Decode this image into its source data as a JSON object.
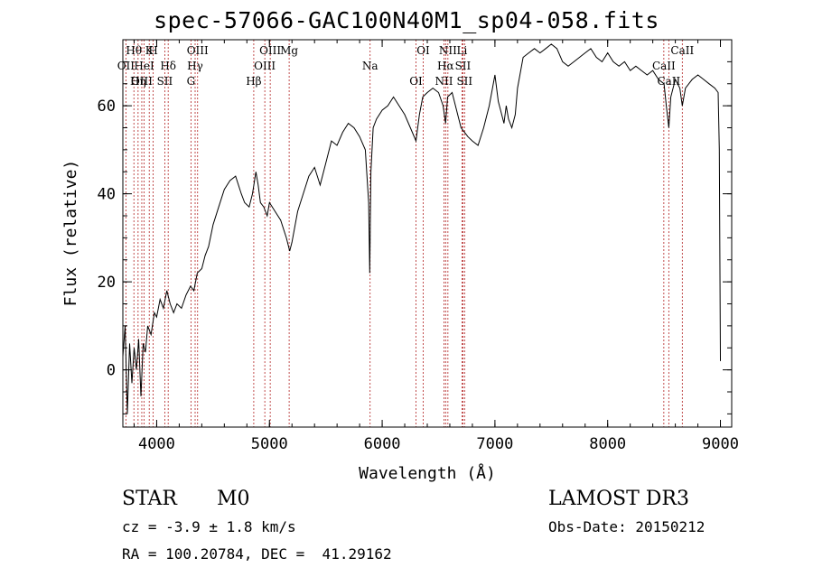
{
  "chart_data": {
    "type": "line",
    "title": "spec-57066-GAC100N40M1_sp04-058.fits",
    "xlabel": "Wavelength (Å)",
    "ylabel": "Flux (relative)",
    "xlim": [
      3700,
      9100
    ],
    "ylim": [
      -13,
      75
    ],
    "xticks": [
      4000,
      5000,
      6000,
      7000,
      8000,
      9000
    ],
    "yticks": [
      0,
      20,
      40,
      60
    ],
    "grid": false,
    "series": [
      {
        "name": "flux",
        "x": [
          3700,
          3720,
          3740,
          3760,
          3780,
          3800,
          3820,
          3840,
          3860,
          3880,
          3900,
          3920,
          3950,
          3980,
          4000,
          4030,
          4060,
          4090,
          4120,
          4150,
          4180,
          4220,
          4260,
          4300,
          4330,
          4360,
          4400,
          4430,
          4460,
          4500,
          4550,
          4600,
          4650,
          4700,
          4750,
          4780,
          4820,
          4850,
          4880,
          4900,
          4920,
          4950,
          4980,
          5000,
          5050,
          5100,
          5150,
          5180,
          5200,
          5250,
          5300,
          5350,
          5400,
          5450,
          5500,
          5550,
          5600,
          5650,
          5700,
          5750,
          5800,
          5850,
          5880,
          5890,
          5900,
          5920,
          5950,
          6000,
          6050,
          6100,
          6150,
          6200,
          6250,
          6300,
          6330,
          6360,
          6400,
          6450,
          6500,
          6540,
          6563,
          6580,
          6620,
          6650,
          6680,
          6700,
          6730,
          6760,
          6800,
          6850,
          6900,
          6950,
          7000,
          7030,
          7060,
          7080,
          7100,
          7120,
          7150,
          7180,
          7200,
          7250,
          7300,
          7350,
          7400,
          7450,
          7500,
          7550,
          7600,
          7650,
          7700,
          7750,
          7800,
          7850,
          7900,
          7950,
          8000,
          8050,
          8100,
          8150,
          8200,
          8250,
          8300,
          8350,
          8400,
          8450,
          8500,
          8520,
          8542,
          8560,
          8600,
          8640,
          8662,
          8690,
          8750,
          8800,
          8850,
          8900,
          8950,
          8980,
          8990,
          9000
        ],
        "y": [
          3,
          10,
          -10,
          6,
          -3,
          5,
          0,
          7,
          -6,
          6,
          4,
          10,
          8,
          13,
          12,
          16,
          14,
          18,
          15,
          13,
          15,
          14,
          17,
          19,
          18,
          22,
          23,
          26,
          28,
          33,
          37,
          41,
          43,
          44,
          40,
          38,
          37,
          40,
          45,
          42,
          38,
          37,
          35,
          38,
          36,
          34,
          30,
          27,
          29,
          36,
          40,
          44,
          46,
          42,
          47,
          52,
          51,
          54,
          56,
          55,
          53,
          50,
          38,
          22,
          45,
          55,
          57,
          59,
          60,
          62,
          60,
          58,
          55,
          52,
          58,
          62,
          63,
          64,
          63,
          60,
          56,
          62,
          63,
          60,
          57,
          55,
          54,
          53,
          52,
          51,
          55,
          60,
          67,
          61,
          58,
          56,
          60,
          57,
          55,
          58,
          64,
          71,
          72,
          73,
          72,
          73,
          74,
          73,
          70,
          69,
          70,
          71,
          72,
          73,
          71,
          70,
          72,
          70,
          69,
          70,
          68,
          69,
          68,
          67,
          68,
          66,
          65,
          60,
          55,
          62,
          66,
          64,
          60,
          64,
          66,
          67,
          66,
          65,
          64,
          63,
          50,
          2
        ]
      }
    ],
    "line_markers": [
      {
        "label": "Hθ",
        "wavelength": 3798
      },
      {
        "label": "OII",
        "wavelength": 3727
      },
      {
        "label": "OIII",
        "wavelength": 3868
      },
      {
        "label": "K",
        "wavelength": 3934
      },
      {
        "label": "HeI",
        "wavelength": 3889
      },
      {
        "label": "Hη",
        "wavelength": 3835
      },
      {
        "label": "H",
        "wavelength": 3969
      },
      {
        "label": "Hδ",
        "wavelength": 4102
      },
      {
        "label": "SII",
        "wavelength": 4072
      },
      {
        "label": "OIII",
        "wavelength": 4363
      },
      {
        "label": "Hγ",
        "wavelength": 4341
      },
      {
        "label": "G",
        "wavelength": 4304
      },
      {
        "label": "OIII",
        "wavelength": 5007
      },
      {
        "label": "OIII",
        "wavelength": 4959
      },
      {
        "label": "Hβ",
        "wavelength": 4861
      },
      {
        "label": "Mg",
        "wavelength": 5175
      },
      {
        "label": "Na",
        "wavelength": 5893
      },
      {
        "label": "OI",
        "wavelength": 6300
      },
      {
        "label": "OI",
        "wavelength": 6364
      },
      {
        "label": "Hα",
        "wavelength": 6563
      },
      {
        "label": "NII",
        "wavelength": 6548
      },
      {
        "label": "NII",
        "wavelength": 6583
      },
      {
        "label": "SII",
        "wavelength": 6716
      },
      {
        "label": "SII",
        "wavelength": 6731
      },
      {
        "label": "Li",
        "wavelength": 6708
      },
      {
        "label": "CaII",
        "wavelength": 8498
      },
      {
        "label": "CaII",
        "wavelength": 8542
      },
      {
        "label": "CaII",
        "wavelength": 8662
      }
    ]
  },
  "info": {
    "class": "STAR",
    "subclass": "M0",
    "survey": "LAMOST DR3",
    "cz": "cz = -3.9 ± 1.8 km/s",
    "obs_date": "Obs-Date: 20150212",
    "coords": "RA = 100.20784, DEC =  41.29162"
  }
}
